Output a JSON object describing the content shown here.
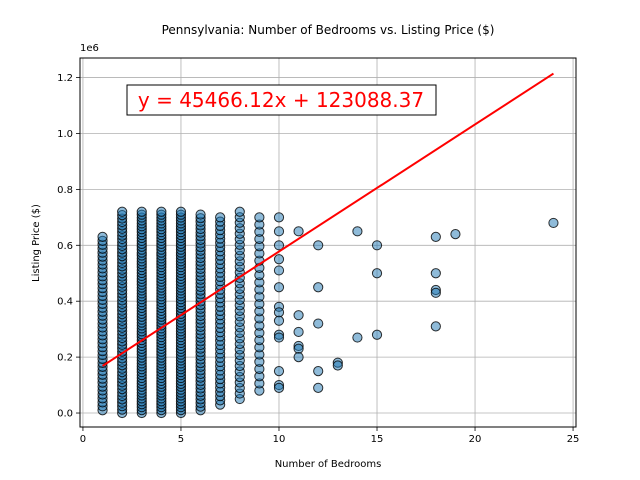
{
  "chart_data": {
    "type": "scatter",
    "title": "Pennsylvania: Number of Bedrooms vs. Listing Price ($)",
    "xlabel": "Number of Bedrooms",
    "ylabel": "Listing Price ($)",
    "y_offset_label": "1e6",
    "xlim": [
      -0.15,
      25.15
    ],
    "ylim": [
      -0.05,
      1.27
    ],
    "xticks": [
      0,
      5,
      10,
      15,
      20,
      25
    ],
    "yticks": [
      0.0,
      0.2,
      0.4,
      0.6,
      0.8,
      1.0,
      1.2
    ],
    "xtick_labels": [
      "0",
      "5",
      "10",
      "15",
      "20",
      "25"
    ],
    "ytick_labels": [
      "0.0",
      "0.2",
      "0.4",
      "0.6",
      "0.8",
      "1.0",
      "1.2"
    ],
    "grid": true,
    "marker_color": "#1f77b4",
    "line_color": "#ff0000",
    "regression": {
      "slope": 45466.12,
      "intercept": 123088.37,
      "x_range": [
        1,
        24
      ],
      "label": "y = 45466.12x + 123088.37"
    },
    "columns": [
      {
        "x": 1,
        "min": 0.01,
        "max": 0.63,
        "n": 45
      },
      {
        "x": 2,
        "min": 0.0,
        "max": 0.72,
        "n": 60
      },
      {
        "x": 3,
        "min": 0.0,
        "max": 0.72,
        "n": 70
      },
      {
        "x": 4,
        "min": 0.0,
        "max": 0.72,
        "n": 70
      },
      {
        "x": 5,
        "min": 0.0,
        "max": 0.72,
        "n": 70
      },
      {
        "x": 6,
        "min": 0.01,
        "max": 0.71,
        "n": 55
      },
      {
        "x": 7,
        "min": 0.03,
        "max": 0.7,
        "n": 45
      },
      {
        "x": 8,
        "min": 0.05,
        "max": 0.72,
        "n": 35
      },
      {
        "x": 9,
        "min": 0.08,
        "max": 0.7,
        "n": 25
      }
    ],
    "points": [
      [
        10,
        0.7
      ],
      [
        10,
        0.65
      ],
      [
        10,
        0.6
      ],
      [
        10,
        0.55
      ],
      [
        10,
        0.51
      ],
      [
        10,
        0.45
      ],
      [
        10,
        0.38
      ],
      [
        10,
        0.36
      ],
      [
        10,
        0.33
      ],
      [
        10,
        0.28
      ],
      [
        10,
        0.27
      ],
      [
        10,
        0.15
      ],
      [
        10,
        0.1
      ],
      [
        10,
        0.09
      ],
      [
        11,
        0.65
      ],
      [
        11,
        0.35
      ],
      [
        11,
        0.29
      ],
      [
        11,
        0.24
      ],
      [
        11,
        0.23
      ],
      [
        11,
        0.2
      ],
      [
        12,
        0.6
      ],
      [
        12,
        0.45
      ],
      [
        12,
        0.32
      ],
      [
        12,
        0.15
      ],
      [
        12,
        0.09
      ],
      [
        13,
        0.18
      ],
      [
        13,
        0.17
      ],
      [
        14,
        0.65
      ],
      [
        14,
        0.27
      ],
      [
        15,
        0.6
      ],
      [
        15,
        0.5
      ],
      [
        15,
        0.28
      ],
      [
        18,
        0.63
      ],
      [
        18,
        0.5
      ],
      [
        18,
        0.44
      ],
      [
        18,
        0.43
      ],
      [
        18,
        0.31
      ],
      [
        19,
        0.64
      ],
      [
        24,
        0.68
      ]
    ]
  }
}
